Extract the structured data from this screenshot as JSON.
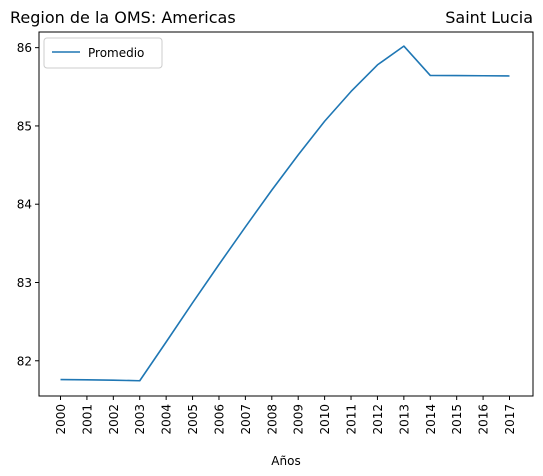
{
  "chart_data": {
    "type": "line",
    "title_left": "Region de la OMS: Americas",
    "title_right": "Saint Lucia",
    "xlabel": "Años",
    "ylabel": "",
    "categories": [
      "2000",
      "2001",
      "2002",
      "2003",
      "2004",
      "2005",
      "2006",
      "2007",
      "2008",
      "2009",
      "2010",
      "2011",
      "2012",
      "2013",
      "2014",
      "2015",
      "2016",
      "2017"
    ],
    "ylim": [
      81.55,
      86.2
    ],
    "yticks": [
      82,
      83,
      84,
      85,
      86
    ],
    "series": [
      {
        "name": "Promedio",
        "color": "#1f77b4",
        "values": [
          81.76,
          81.757,
          81.752,
          81.745,
          82.24,
          82.74,
          83.23,
          83.71,
          84.18,
          84.63,
          85.06,
          85.44,
          85.78,
          86.02,
          85.645,
          85.643,
          85.641,
          85.638
        ]
      }
    ],
    "legend_position": "upper-left",
    "grid": false
  }
}
